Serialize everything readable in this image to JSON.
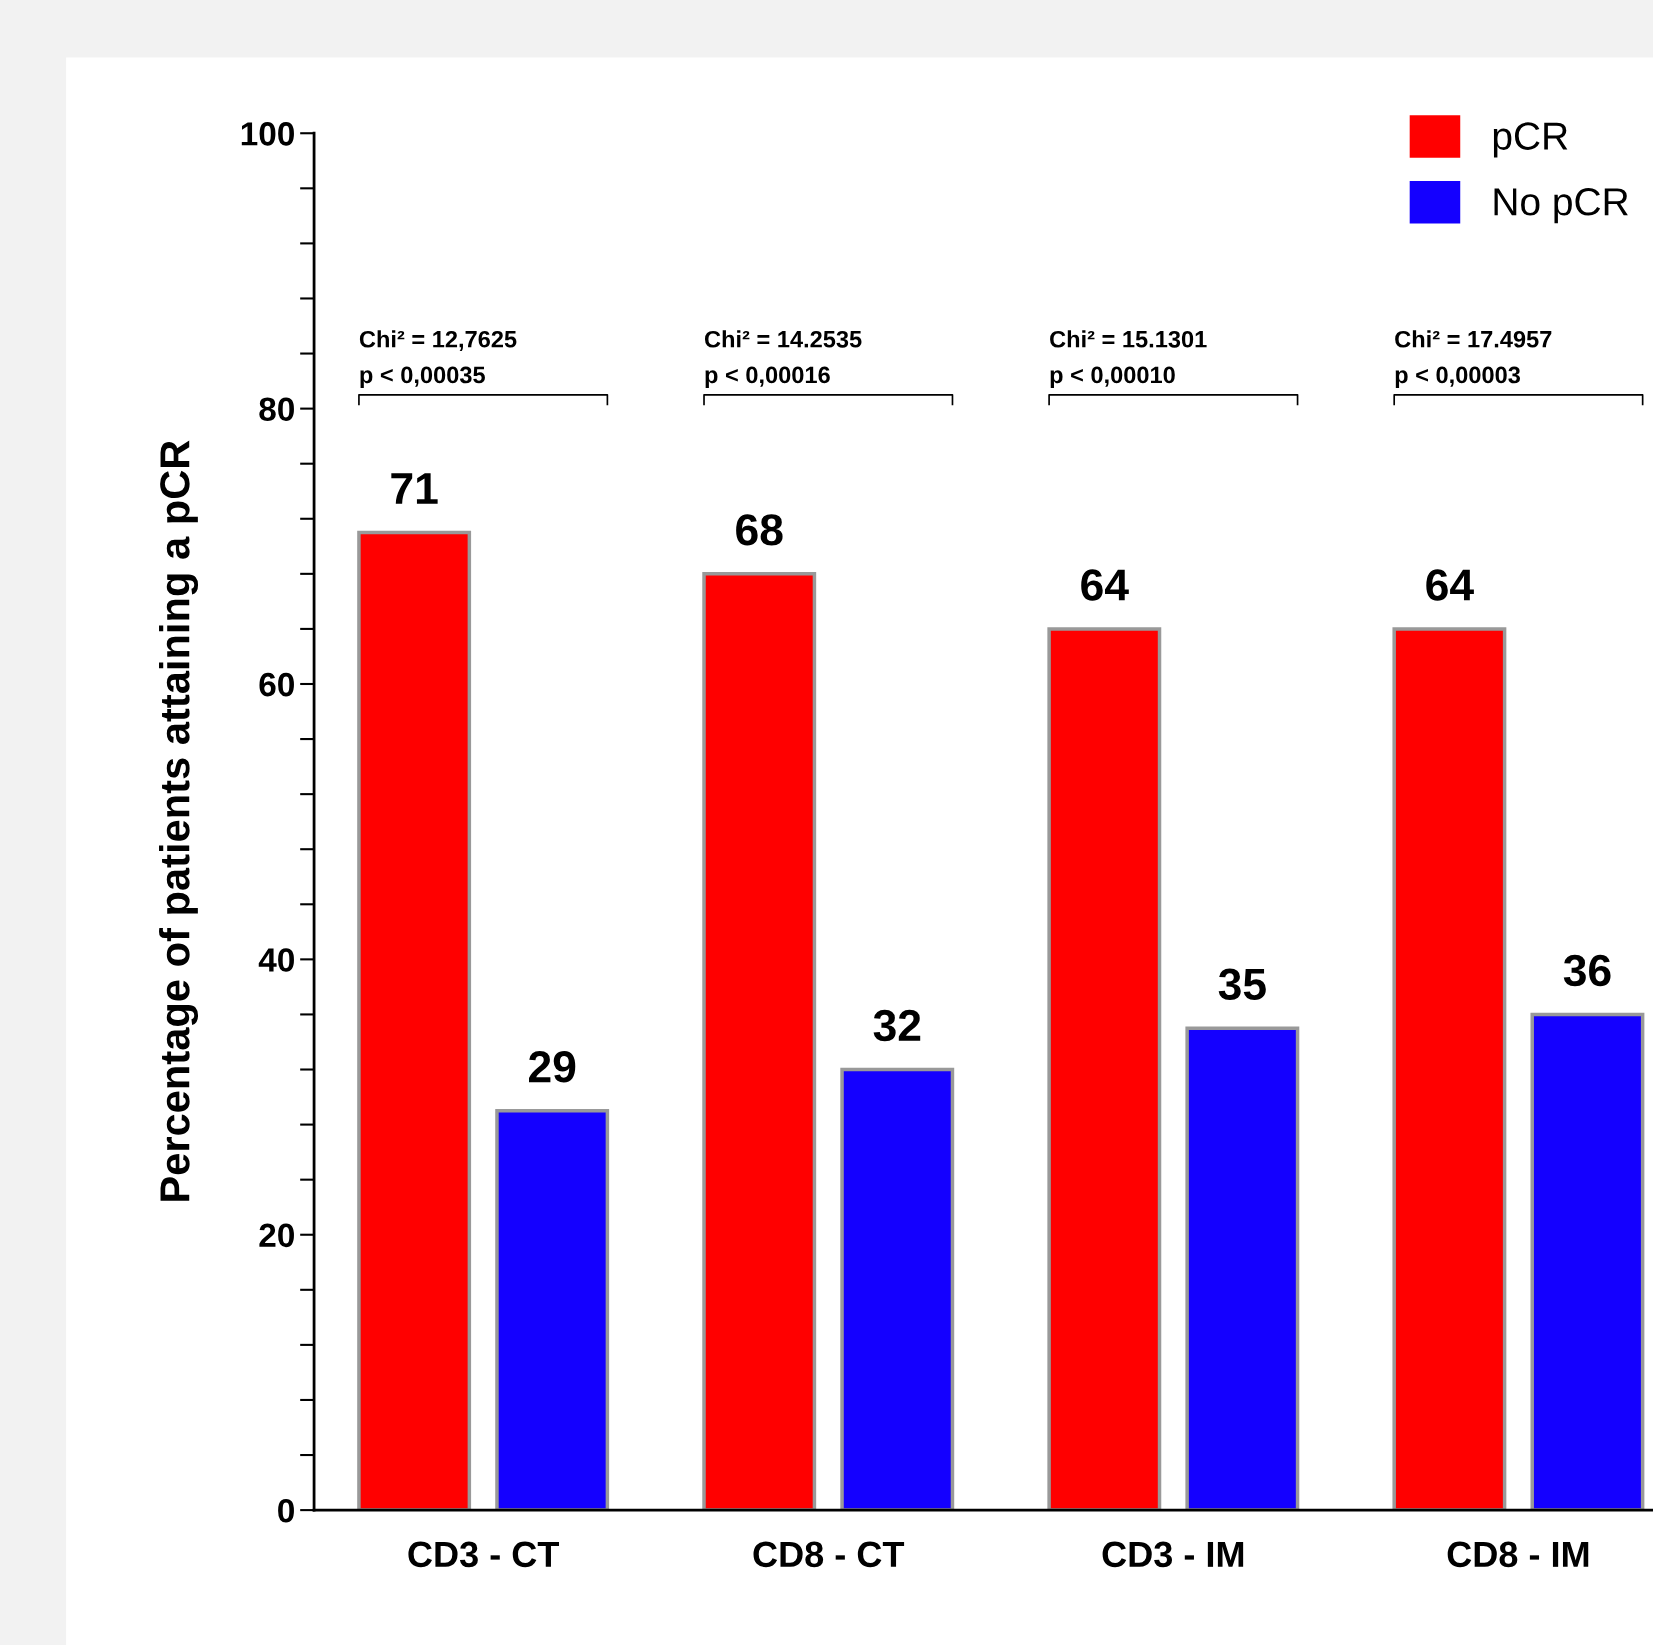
{
  "chart_data": {
    "type": "bar",
    "ylabel": "Percentage of patients attaining a pCR",
    "categories": [
      "CD3 - CT",
      "CD8 - CT",
      "CD3 - IM",
      "CD8 - IM"
    ],
    "series": [
      {
        "name": "pCR",
        "color": "#ff0000",
        "values": [
          71,
          68,
          64,
          64
        ]
      },
      {
        "name": "No pCR",
        "color": "#1400ff",
        "values": [
          29,
          32,
          35,
          36
        ]
      }
    ],
    "ylim": [
      0,
      100
    ],
    "yticks": [
      0,
      {
        "value": 4,
        "label": null
      },
      {
        "value": 8,
        "label": null
      },
      {
        "value": 12,
        "label": null
      },
      {
        "value": 16,
        "label": null
      },
      20,
      {
        "value": 24,
        "label": null
      },
      {
        "value": 28,
        "label": null
      },
      {
        "value": 32,
        "label": null
      },
      {
        "value": 36,
        "label": null
      },
      40,
      {
        "value": 44,
        "label": null
      },
      {
        "value": 48,
        "label": null
      },
      {
        "value": 52,
        "label": null
      },
      {
        "value": 56,
        "label": null
      },
      60,
      {
        "value": 64,
        "label": null
      },
      {
        "value": 68,
        "label": null
      },
      {
        "value": 72,
        "label": null
      },
      {
        "value": 76,
        "label": null
      },
      80,
      {
        "value": 84,
        "label": null
      },
      {
        "value": 88,
        "label": null
      },
      {
        "value": 92,
        "label": null
      },
      {
        "value": 96,
        "label": null
      },
      100
    ],
    "annotations": [
      "Chi² = 12,7625\np < 0,00035",
      "Chi² = 14.2535\np < 0,00016",
      "Chi² = 15.1301\np < 0,00010",
      "Chi² = 17.4957\np < 0,00003"
    ],
    "data_labels": true,
    "grid": false,
    "legend": "top right"
  }
}
